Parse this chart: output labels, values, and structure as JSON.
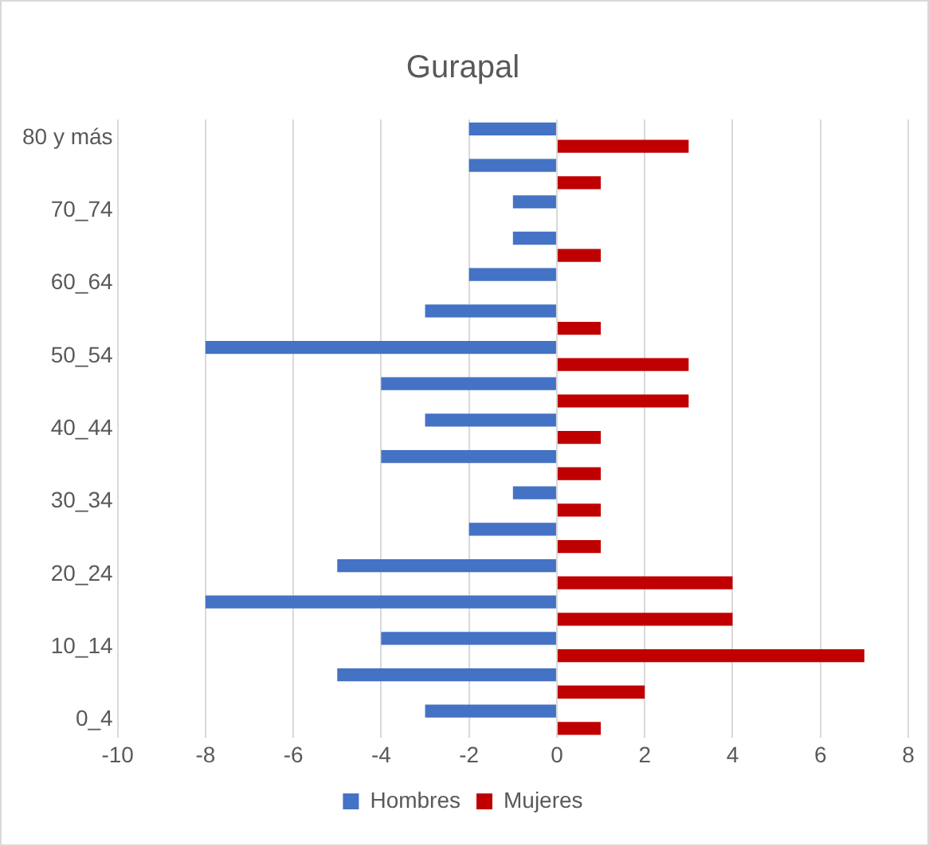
{
  "chart_data": {
    "type": "bar",
    "orientation": "horizontal",
    "title": "Gurapal",
    "categories": [
      "80 y más",
      null,
      "70_74",
      null,
      "60_64",
      null,
      "50_54",
      null,
      "40_44",
      null,
      "30_34",
      null,
      "20_24",
      null,
      "10_14",
      null,
      "0_4"
    ],
    "series": [
      {
        "name": "Hombres",
        "color": "#4472c4",
        "values": [
          -2,
          -2,
          -1,
          -1,
          -2,
          -3,
          -8,
          -4,
          -3,
          -4,
          -1,
          -2,
          -5,
          -8,
          -4,
          -5,
          -3
        ]
      },
      {
        "name": "Mujeres",
        "color": "#c00000",
        "values": [
          3,
          1,
          0,
          1,
          0,
          1,
          3,
          3,
          1,
          1,
          1,
          1,
          4,
          4,
          7,
          2,
          1
        ]
      }
    ],
    "xlim": [
      -10,
      8
    ],
    "xticks": [
      -10,
      -8,
      -6,
      -4,
      -2,
      0,
      2,
      4,
      6,
      8
    ],
    "grid": "x",
    "legend": "bottom"
  }
}
